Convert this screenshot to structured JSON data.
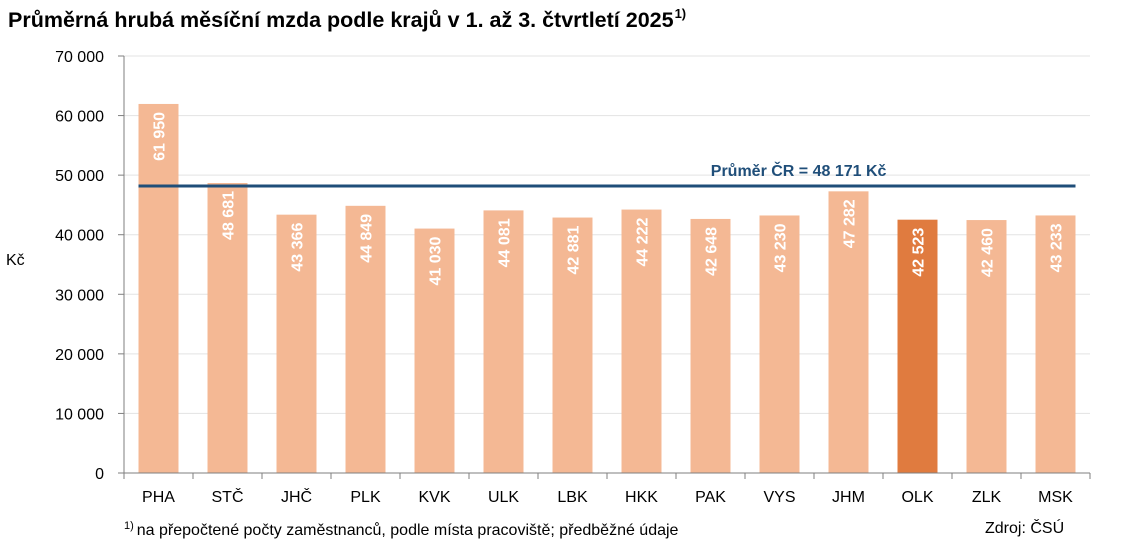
{
  "title": {
    "text": "Průměrná hrubá měsíční mzda podle krajů v 1. až 3. čtvrtletí 2025",
    "superscript": "1)"
  },
  "footnote": {
    "marker": "1)",
    "text": "na přepočtené počty zaměstnanců, podle místa pracoviště; předběžné údaje"
  },
  "source": "Zdroj: ČSÚ",
  "chart_data": {
    "type": "bar",
    "title": "Průměrná hrubá měsíční mzda podle krajů v 1. až 3. čtvrtletí 2025",
    "ylabel": "Kč",
    "xlabel": "",
    "ylim": [
      0,
      70000
    ],
    "yticks": [
      0,
      10000,
      20000,
      30000,
      40000,
      50000,
      60000,
      70000
    ],
    "ytick_labels": [
      "0",
      "10 000",
      "20 000",
      "30 000",
      "40 000",
      "50 000",
      "60 000",
      "70 000"
    ],
    "grid": "horizontal",
    "categories": [
      "PHA",
      "STČ",
      "JHČ",
      "PLK",
      "KVK",
      "ULK",
      "LBK",
      "HKK",
      "PAK",
      "VYS",
      "JHM",
      "OLK",
      "ZLK",
      "MSK"
    ],
    "values": [
      61950,
      48681,
      43366,
      44849,
      41030,
      44081,
      42881,
      44222,
      42648,
      43230,
      47282,
      42523,
      42460,
      43233
    ],
    "value_labels": [
      "61 950",
      "48 681",
      "43 366",
      "44 849",
      "41 030",
      "44 081",
      "42 881",
      "44 222",
      "42 648",
      "43 230",
      "47 282",
      "42 523",
      "42 460",
      "43 233"
    ],
    "highlighted_category": "OLK",
    "reference_line": {
      "value": 48171,
      "label": "Průměr ČR = 48 171 Kč"
    },
    "colors": {
      "bar": "#f4b894",
      "bar_highlight": "#e07b3f",
      "reference_line": "#1f4e79",
      "grid": "#e3e3e3"
    }
  }
}
